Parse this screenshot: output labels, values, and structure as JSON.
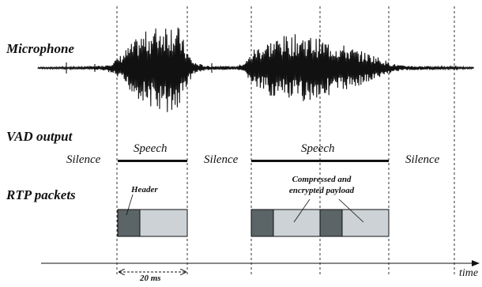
{
  "rows": {
    "microphone": "Microphone",
    "vad": "VAD output",
    "rtp": "RTP packets"
  },
  "vad_states": [
    "Silence",
    "Speech",
    "Silence",
    "Speech",
    "Silence"
  ],
  "annotations": {
    "header": "Header",
    "payload_line1": "Compressed and",
    "payload_line2": "encrypted payload",
    "duration": "20 ms"
  },
  "axis": {
    "label": "time"
  },
  "colors": {
    "header_block": "#5b6466",
    "payload_block": "#cdd2d6",
    "ink": "#111111"
  }
}
